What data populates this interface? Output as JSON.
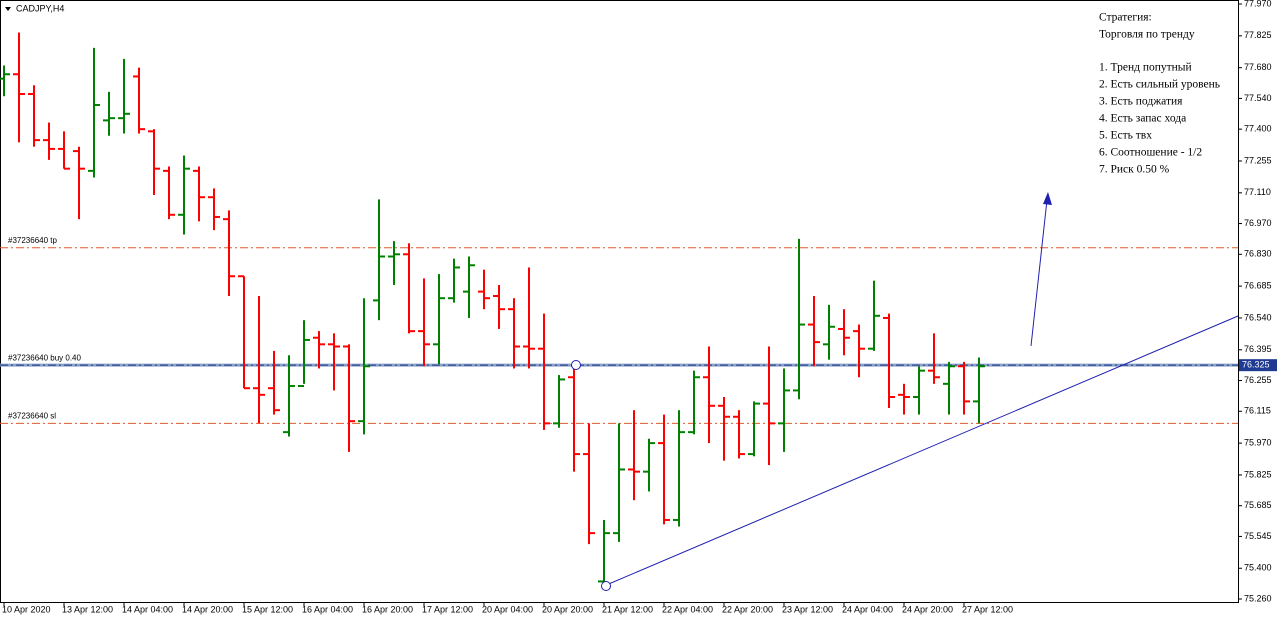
{
  "chart_data": {
    "type": "ohlc",
    "title": "CADJPY,H4",
    "categories": [
      "10 Apr 2020",
      null,
      null,
      null,
      "13 Apr 12:00",
      null,
      null,
      null,
      "14 Apr 04:00",
      null,
      null,
      null,
      "14 Apr 20:00",
      null,
      null,
      null,
      "15 Apr 12:00",
      null,
      null,
      null,
      "16 Apr 04:00",
      null,
      null,
      null,
      "16 Apr 20:00",
      null,
      null,
      null,
      "17 Apr 12:00",
      null,
      null,
      null,
      "20 Apr 04:00",
      null,
      null,
      null,
      "20 Apr 20:00",
      null,
      null,
      null,
      "21 Apr 12:00",
      null,
      null,
      null,
      "22 Apr 04:00",
      null,
      null,
      null,
      "22 Apr 20:00",
      null,
      null,
      null,
      "23 Apr 12:00",
      null,
      null,
      null,
      "24 Apr 04:00",
      null,
      null,
      null,
      "24 Apr 20:00",
      null,
      null,
      null,
      "27 Apr 12:00",
      null
    ],
    "open": [
      77.63,
      77.65,
      77.56,
      77.35,
      77.31,
      77.3,
      77.21,
      77.44,
      77.45,
      77.64,
      77.39,
      77.21,
      77.01,
      77.21,
      77.09,
      76.99,
      76.73,
      76.22,
      76.22,
      76.02,
      76.23,
      76.45,
      76.42,
      76.41,
      76.07,
      76.62,
      76.82,
      76.83,
      76.48,
      76.42,
      76.63,
      76.66,
      76.66,
      76.64,
      76.58,
      76.41,
      76.4,
      76.06,
      76.27,
      75.92,
      75.34,
      75.56,
      75.85,
      75.84,
      75.97,
      75.62,
      76.02,
      76.27,
      76.14,
      76.09,
      75.92,
      76.15,
      76.06,
      76.21,
      76.51,
      76.42,
      76.49,
      76.48,
      76.4,
      76.54,
      76.19,
      76.18,
      76.3,
      76.24,
      76.32,
      76.16
    ],
    "high": [
      77.69,
      77.84,
      77.6,
      77.43,
      77.39,
      77.32,
      77.77,
      77.57,
      77.72,
      77.68,
      77.4,
      77.23,
      77.28,
      77.23,
      77.13,
      77.03,
      76.73,
      76.64,
      76.39,
      76.37,
      76.53,
      76.48,
      76.47,
      76.42,
      76.63,
      77.08,
      76.89,
      76.88,
      76.72,
      76.74,
      76.81,
      76.82,
      76.76,
      76.69,
      76.63,
      76.77,
      76.56,
      76.28,
      76.32,
      76.06,
      75.62,
      76.06,
      76.12,
      75.99,
      76.1,
      76.12,
      76.3,
      76.41,
      76.18,
      76.12,
      76.16,
      76.41,
      76.31,
      76.9,
      76.64,
      76.6,
      76.58,
      76.51,
      76.71,
      76.56,
      76.24,
      76.32,
      76.47,
      76.34,
      76.34,
      76.36
    ],
    "low": [
      77.55,
      77.34,
      77.32,
      77.26,
      77.22,
      76.99,
      77.18,
      77.37,
      77.38,
      77.38,
      77.1,
      76.99,
      76.92,
      76.98,
      76.94,
      76.64,
      76.22,
      76.06,
      76.1,
      76.0,
      76.24,
      76.31,
      76.21,
      75.93,
      76.01,
      76.53,
      76.69,
      76.47,
      76.32,
      76.33,
      76.61,
      76.54,
      76.58,
      76.49,
      76.31,
      76.31,
      76.03,
      76.04,
      75.84,
      75.51,
      75.32,
      75.52,
      75.71,
      75.75,
      75.6,
      75.59,
      76.01,
      75.97,
      75.89,
      75.9,
      75.91,
      75.87,
      75.93,
      76.17,
      76.32,
      76.35,
      76.37,
      76.27,
      76.39,
      76.13,
      76.1,
      76.1,
      76.24,
      76.1,
      76.1,
      76.06
    ],
    "close": [
      77.65,
      77.56,
      77.35,
      77.31,
      77.22,
      77.22,
      77.51,
      77.45,
      77.47,
      77.4,
      77.22,
      77.01,
      77.22,
      77.09,
      77.0,
      76.73,
      76.22,
      76.19,
      76.12,
      76.23,
      76.44,
      76.42,
      76.41,
      76.07,
      76.32,
      76.82,
      76.83,
      76.48,
      76.42,
      76.63,
      76.77,
      76.78,
      76.63,
      76.58,
      76.41,
      76.4,
      76.06,
      76.26,
      75.92,
      75.56,
      75.56,
      75.85,
      75.84,
      75.97,
      75.62,
      76.02,
      76.27,
      76.14,
      76.09,
      75.92,
      76.15,
      76.06,
      76.21,
      76.51,
      76.43,
      76.5,
      76.45,
      76.4,
      76.55,
      76.18,
      76.18,
      76.3,
      76.27,
      76.32,
      76.16,
      76.32
    ],
    "up_color": "#008000",
    "down_color": "#ff0000",
    "ylim": [
      75.26,
      77.97
    ],
    "yticks": [
      {
        "value": 77.97,
        "label": "77.970"
      },
      {
        "value": 77.825,
        "label": "77.825"
      },
      {
        "value": 77.68,
        "label": "77.680"
      },
      {
        "value": 77.54,
        "label": "77.540"
      },
      {
        "value": 77.4,
        "label": "77.400"
      },
      {
        "value": 77.255,
        "label": "77.255"
      },
      {
        "value": 77.11,
        "label": "77.110"
      },
      {
        "value": 76.97,
        "label": "76.970"
      },
      {
        "value": 76.83,
        "label": "76.830"
      },
      {
        "value": 76.685,
        "label": "76.685"
      },
      {
        "value": 76.54,
        "label": "76.540"
      },
      {
        "value": 76.395,
        "label": "76.395"
      },
      {
        "value": 76.255,
        "label": "76.255"
      },
      {
        "value": 76.115,
        "label": "76.115"
      },
      {
        "value": 75.97,
        "label": "75.970"
      },
      {
        "value": 75.825,
        "label": "75.825"
      },
      {
        "value": 75.685,
        "label": "75.685"
      },
      {
        "value": 75.545,
        "label": "75.545"
      },
      {
        "value": 75.4,
        "label": "75.400"
      },
      {
        "value": 75.26,
        "label": "75.260"
      }
    ],
    "last_price": {
      "value": 76.325,
      "label": "76.325"
    },
    "levels": [
      {
        "label": "#37236640 tp",
        "value": 76.86,
        "color": "#e05a2b"
      },
      {
        "label": "#37236640 buy 0.40",
        "value": 76.325,
        "color": "#1a3a8a"
      },
      {
        "label": "#37236640 sl",
        "value": 76.06,
        "color": "#e05a2b"
      }
    ],
    "notes": [
      "Стратегия:",
      "Торговля по тренду",
      "1. Тренд попутный",
      "2. Есть сильный уровень",
      "3. Есть поджатия",
      "4. Есть запас хода",
      "5. Есть твх",
      "6. Соотношение - 1/2",
      "7. Риск 0.50 %"
    ]
  }
}
